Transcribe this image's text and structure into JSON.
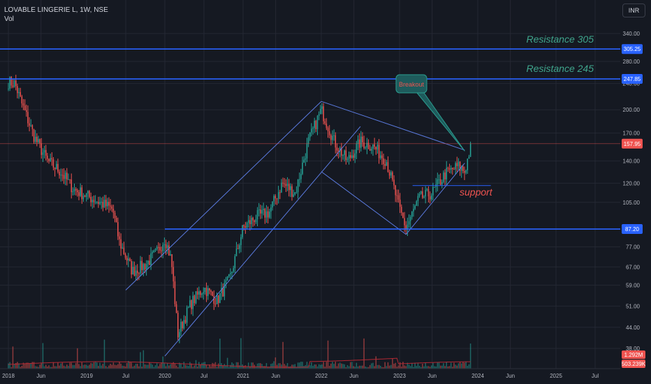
{
  "header": {
    "title": "LOVABLE LINGERIE L, 1W, NSE",
    "volume_label": "Vol",
    "currency": "INR"
  },
  "colors": {
    "background": "#151922",
    "grid": "#242833",
    "up": "#26a69a",
    "down": "#ef5350",
    "drawing": "#2962ff",
    "trend": "#5b7be0",
    "resistance_text": "#3fa58c",
    "support_text": "#ef5350",
    "axis_text": "#b2b5be"
  },
  "chart_data": {
    "type": "candlestick",
    "y_scale": "log",
    "ylim": [
      33,
      405
    ],
    "y_ticks": [
      "340.00",
      "280.00",
      "240.00",
      "200.00",
      "170.00",
      "140.00",
      "120.00",
      "105.00",
      "87.00",
      "77.00",
      "67.00",
      "59.00",
      "51.00",
      "44.00",
      "38.00"
    ],
    "x_ticks": [
      "2018",
      "Jun",
      "2019",
      "Jul",
      "2020",
      "Jul",
      "2021",
      "Jun",
      "2022",
      "Jun",
      "2023",
      "Jun",
      "2024",
      "Jun",
      "2025",
      "Jul"
    ],
    "x_range": [
      "2017-12",
      "2025-08"
    ],
    "price_badges": [
      {
        "label": "305.25",
        "value": 305.25,
        "type": "line"
      },
      {
        "label": "247.85",
        "value": 247.85,
        "type": "line"
      },
      {
        "label": "157.95",
        "value": 157.95,
        "type": "last"
      },
      {
        "label": "87.20",
        "value": 87.2,
        "type": "line"
      }
    ],
    "volume_badges": [
      "1.292M",
      "503.239K"
    ],
    "horizontal_lines": [
      {
        "value": 305.25,
        "name": "Resistance 305"
      },
      {
        "value": 247.85,
        "name": "Resistance 245"
      },
      {
        "value": 87.2,
        "from": "2020-01",
        "name": ""
      },
      {
        "value": 118,
        "from": "2023-03",
        "to": "2024-03",
        "name": "support"
      }
    ],
    "trendlines": [
      {
        "from": [
          "2019-07",
          57
        ],
        "to": [
          "2022-01",
          212
        ]
      },
      {
        "from": [
          "2020-01",
          36
        ],
        "to": [
          "2022-07",
          178
        ]
      },
      {
        "from": [
          "2022-01",
          212
        ],
        "to": [
          "2023-11",
          151
        ]
      },
      {
        "from": [
          "2022-01",
          130
        ],
        "to": [
          "2023-02",
          84
        ]
      },
      {
        "from": [
          "2023-02",
          84
        ],
        "to": [
          "2023-11",
          138
        ]
      }
    ],
    "annotations": {
      "resistance_305": "Resistance 305",
      "resistance_245": "Resistance 245",
      "support": "support",
      "callout": "Breakout"
    },
    "price_path": [
      [
        "2017-12",
        245
      ],
      [
        "2018-02",
        240
      ],
      [
        "2018-03",
        210
      ],
      [
        "2018-05",
        165
      ],
      [
        "2018-07",
        140
      ],
      [
        "2018-09",
        130
      ],
      [
        "2018-11",
        115
      ],
      [
        "2019-01",
        110
      ],
      [
        "2019-03",
        105
      ],
      [
        "2019-05",
        100
      ],
      [
        "2019-06",
        80
      ],
      [
        "2019-08",
        65
      ],
      [
        "2019-10",
        68
      ],
      [
        "2019-12",
        75
      ],
      [
        "2020-01",
        82
      ],
      [
        "2020-02",
        70
      ],
      [
        "2020-03",
        42
      ],
      [
        "2020-05",
        52
      ],
      [
        "2020-07",
        58
      ],
      [
        "2020-09",
        53
      ],
      [
        "2020-11",
        62
      ],
      [
        "2021-01",
        88
      ],
      [
        "2021-03",
        95
      ],
      [
        "2021-05",
        98
      ],
      [
        "2021-07",
        120
      ],
      [
        "2021-09",
        112
      ],
      [
        "2021-11",
        160
      ],
      [
        "2022-01",
        200
      ],
      [
        "2022-03",
        160
      ],
      [
        "2022-05",
        140
      ],
      [
        "2022-07",
        160
      ],
      [
        "2022-09",
        155
      ],
      [
        "2022-11",
        140
      ],
      [
        "2023-01",
        100
      ],
      [
        "2023-02",
        88
      ],
      [
        "2023-04",
        108
      ],
      [
        "2023-06",
        112
      ],
      [
        "2023-08",
        128
      ],
      [
        "2023-10",
        135
      ],
      [
        "2023-11",
        130
      ],
      [
        "2023-12",
        158
      ]
    ]
  }
}
